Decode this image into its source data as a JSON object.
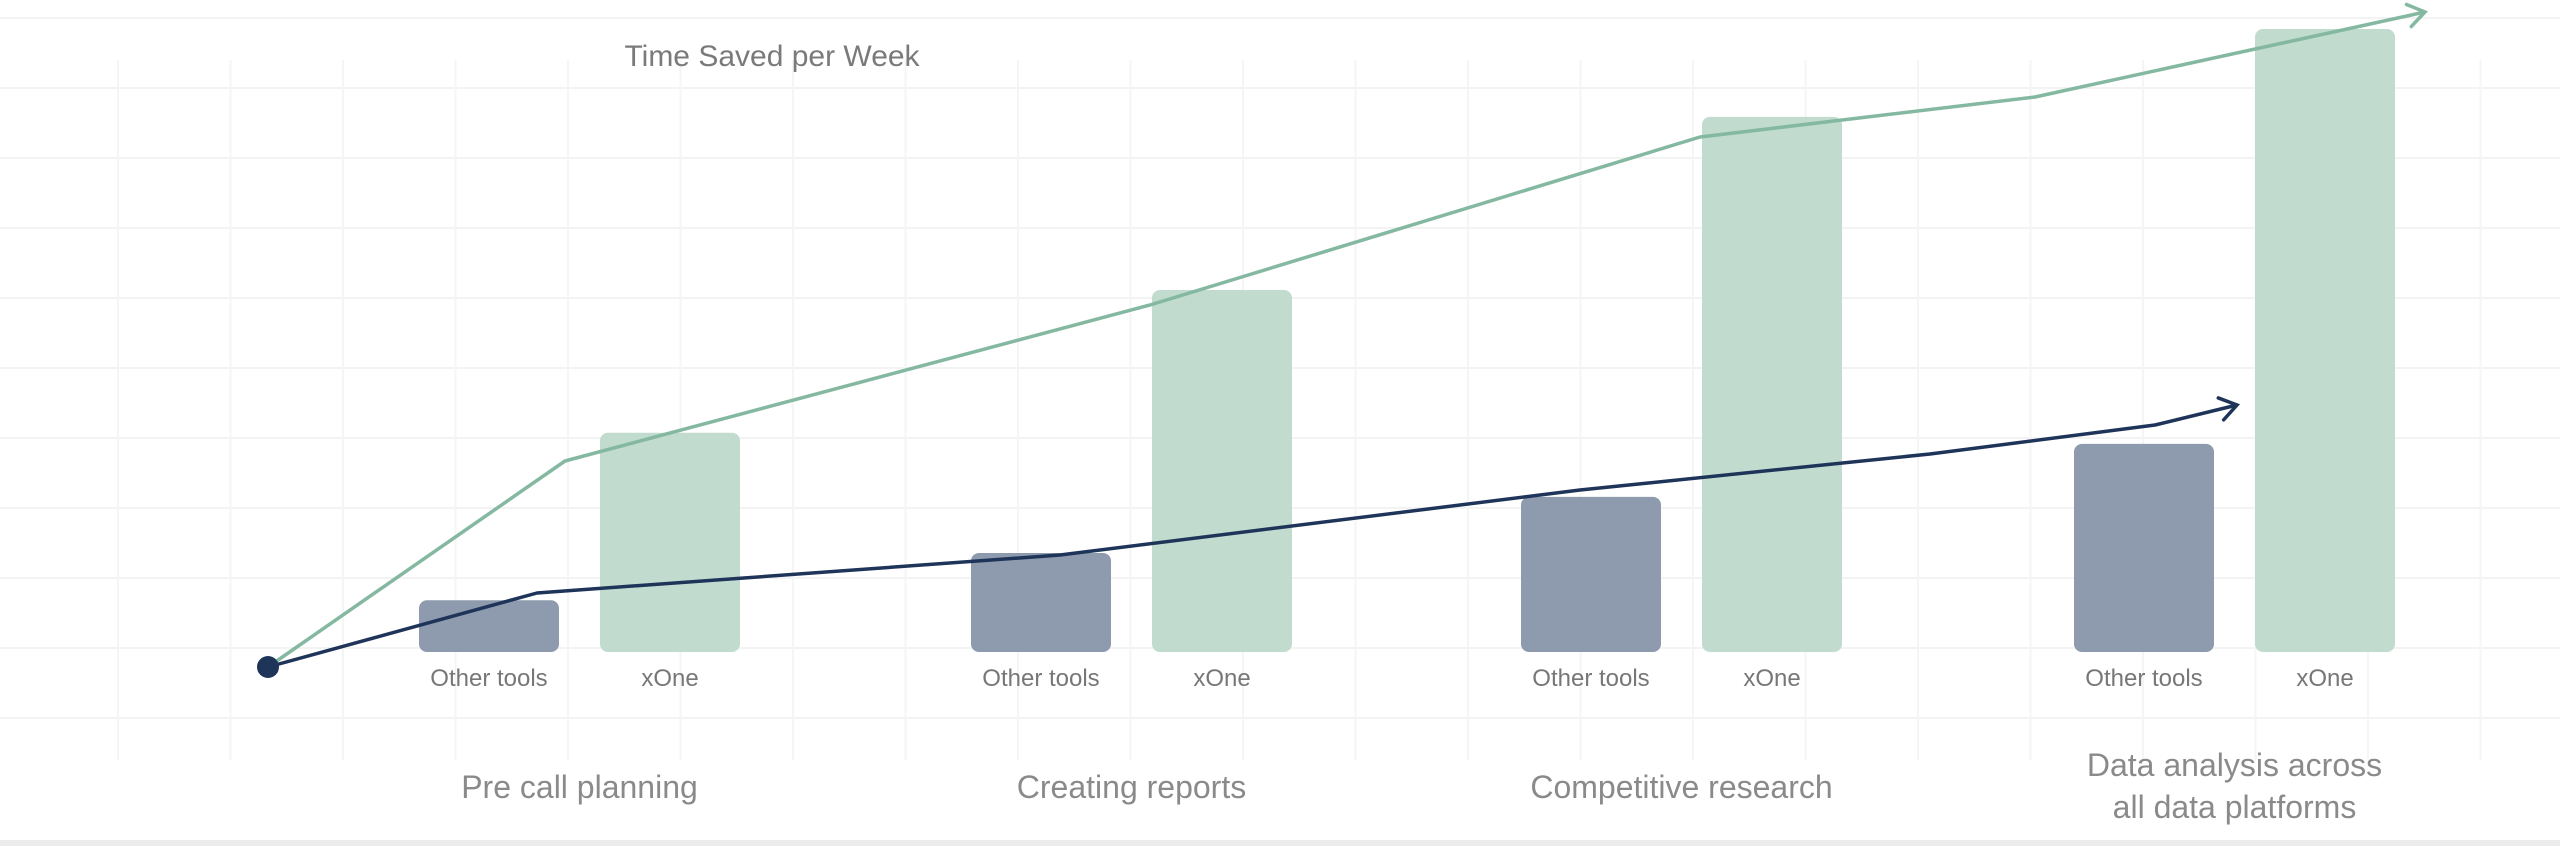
{
  "chart_data": {
    "type": "bar",
    "title": "Time Saved per Week",
    "xlabel": "",
    "ylabel": "",
    "ylim": [
      0,
      100
    ],
    "grid": true,
    "categories": [
      "Pre call planning",
      "Creating reports",
      "Competitive research",
      "Data analysis across all data platforms"
    ],
    "category_lines": [
      [
        "Pre call planning"
      ],
      [
        "Creating reports"
      ],
      [
        "Competitive research"
      ],
      [
        "Data analysis across",
        "all data platforms"
      ]
    ],
    "series": [
      {
        "name": "Other tools",
        "color": "#8e9aad",
        "values": [
          8.3,
          15.9,
          24.9,
          33.4
        ]
      },
      {
        "name": "xOne",
        "color": "#c1dccf",
        "values": [
          35.2,
          58.1,
          85.9,
          100
        ]
      }
    ],
    "trend_colors": {
      "other": "#1f3459",
      "xone": "#84b8a1"
    }
  }
}
